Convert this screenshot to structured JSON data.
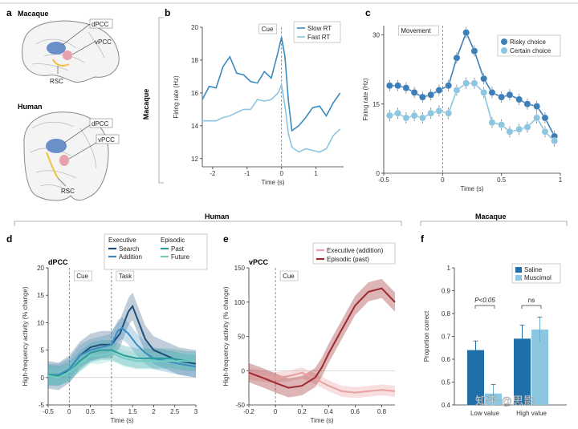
{
  "colors": {
    "dark_blue": "#1f4e79",
    "mid_blue": "#3a8bbf",
    "light_blue": "#8cc6e0",
    "teal": "#2a9d9a",
    "light_teal": "#73cfc4",
    "dark_red": "#9e2a2f",
    "light_red": "#e8a0a3",
    "brain_blue": "#6a8fc9",
    "brain_pink": "#e6a1ad",
    "rsc_yellow": "#f0c040"
  },
  "panel_a": {
    "letter": "a",
    "macaque_title": "Macaque",
    "human_title": "Human",
    "labels": {
      "dpcc": "dPCC",
      "vpcc": "vPCC",
      "rsc": "RSC"
    }
  },
  "panel_b": {
    "letter": "b",
    "side_label": "Macaque",
    "cue": "Cue",
    "legend": [
      "Slow RT",
      "Fast RT"
    ]
  },
  "panel_c": {
    "letter": "c",
    "movement": "Movement",
    "legend": [
      "Risky choice",
      "Certain choice"
    ]
  },
  "human_header": "Human",
  "macaque_header": "Macaque",
  "panel_d": {
    "letter": "d",
    "region": "dPCC",
    "cue": "Cue",
    "task": "Task",
    "legend_exec_title": "Executive",
    "legend_epi_title": "Episodic",
    "legend": [
      "Search",
      "Addition",
      "Past",
      "Future"
    ]
  },
  "panel_e": {
    "letter": "e",
    "region": "vPCC",
    "cue": "Cue",
    "legend": [
      "Executive (addition)",
      "Episodic (past)"
    ]
  },
  "panel_f": {
    "letter": "f",
    "legend": [
      "Saline",
      "Muscimol"
    ],
    "sig1": "P<0.05",
    "sig2": "ns"
  },
  "watermark": "知乎 @思影",
  "chart_data": [
    {
      "type": "line",
      "panel": "b",
      "title": "",
      "xlabel": "Time (s)",
      "ylabel": "Firing rate (Hz)",
      "xlim": [
        -2.3,
        1.8
      ],
      "ylim": [
        11.5,
        20
      ],
      "xticks": [
        -2,
        -1,
        0,
        1
      ],
      "yticks": [
        12,
        14,
        16,
        18,
        20
      ],
      "series": [
        {
          "name": "Slow RT",
          "x": [
            -2.3,
            -2.1,
            -1.9,
            -1.7,
            -1.5,
            -1.3,
            -1.1,
            -0.9,
            -0.7,
            -0.5,
            -0.3,
            -0.1,
            0,
            0.1,
            0.2,
            0.3,
            0.5,
            0.7,
            0.9,
            1.1,
            1.3,
            1.5,
            1.7
          ],
          "y": [
            15.6,
            16.4,
            16.3,
            17.6,
            18.2,
            17.2,
            17.1,
            16.7,
            16.6,
            17.3,
            16.9,
            18.5,
            19.4,
            18.2,
            15.5,
            13.7,
            14.0,
            14.5,
            15.1,
            15.2,
            14.6,
            15.4,
            16.0
          ]
        },
        {
          "name": "Fast RT",
          "x": [
            -2.3,
            -2.1,
            -1.9,
            -1.7,
            -1.5,
            -1.3,
            -1.1,
            -0.9,
            -0.7,
            -0.5,
            -0.3,
            -0.1,
            0,
            0.1,
            0.2,
            0.3,
            0.5,
            0.7,
            0.9,
            1.1,
            1.3,
            1.5,
            1.7
          ],
          "y": [
            14.3,
            14.3,
            14.3,
            14.5,
            14.6,
            14.8,
            15.0,
            15.0,
            15.6,
            15.5,
            15.6,
            16.0,
            16.5,
            15.2,
            13.5,
            12.7,
            12.4,
            12.6,
            12.5,
            12.4,
            12.6,
            13.4,
            13.8
          ]
        }
      ]
    },
    {
      "type": "line",
      "panel": "c",
      "xlabel": "Time (s)",
      "ylabel": "Firing rate (Hz)",
      "xlim": [
        -0.5,
        1.0
      ],
      "ylim": [
        0,
        32
      ],
      "xticks": [
        -0.5,
        0,
        0.5,
        1.0
      ],
      "yticks": [
        0,
        15,
        30
      ],
      "series": [
        {
          "name": "Risky choice",
          "x": [
            -0.45,
            -0.38,
            -0.31,
            -0.24,
            -0.17,
            -0.1,
            -0.03,
            0.05,
            0.12,
            0.2,
            0.27,
            0.35,
            0.42,
            0.5,
            0.57,
            0.65,
            0.72,
            0.8,
            0.87,
            0.95
          ],
          "y": [
            19,
            19,
            18.5,
            17.5,
            16.5,
            17,
            18,
            19,
            25,
            30.5,
            26.5,
            20.5,
            17.5,
            16.5,
            17,
            16,
            15,
            14.5,
            12,
            8
          ]
        },
        {
          "name": "Certain choice",
          "x": [
            -0.45,
            -0.38,
            -0.31,
            -0.24,
            -0.17,
            -0.1,
            -0.03,
            0.05,
            0.12,
            0.2,
            0.27,
            0.35,
            0.42,
            0.5,
            0.57,
            0.65,
            0.72,
            0.8,
            0.87,
            0.95
          ],
          "y": [
            12.5,
            13,
            12,
            12.5,
            12,
            13,
            13.5,
            13,
            18,
            19.5,
            19.5,
            17.5,
            11,
            10.5,
            9,
            9.5,
            10,
            12,
            9,
            7
          ]
        }
      ]
    },
    {
      "type": "line",
      "panel": "d",
      "xlabel": "Time (s)",
      "ylabel": "High-frequency activity (% change)",
      "xlim": [
        -0.5,
        3.0
      ],
      "ylim": [
        -5,
        20
      ],
      "xticks": [
        -0.5,
        0,
        0.5,
        1.0,
        1.5,
        2.0,
        2.5,
        3.0
      ],
      "yticks": [
        -5,
        0,
        5,
        10,
        15,
        20
      ],
      "series": [
        {
          "name": "Search",
          "x": [
            -0.5,
            -0.25,
            0,
            0.25,
            0.5,
            0.75,
            1.0,
            1.2,
            1.4,
            1.5,
            1.6,
            1.8,
            2.0,
            2.3,
            2.6,
            3.0
          ],
          "y": [
            0.5,
            0.2,
            1.5,
            4,
            5.5,
            6,
            6,
            8,
            12,
            13,
            11,
            7,
            5,
            4,
            3,
            2.5
          ]
        },
        {
          "name": "Addition",
          "x": [
            -0.5,
            -0.25,
            0,
            0.25,
            0.5,
            0.75,
            1.0,
            1.15,
            1.25,
            1.4,
            1.6,
            1.8,
            2.0,
            2.3,
            2.6,
            3.0
          ],
          "y": [
            0.5,
            0.5,
            1.5,
            4,
            5,
            5.5,
            6,
            8.5,
            9,
            8,
            6,
            4.5,
            3.5,
            3,
            2.5,
            2
          ]
        },
        {
          "name": "Past",
          "x": [
            -0.5,
            -0.25,
            0,
            0.25,
            0.5,
            0.75,
            1.0,
            1.3,
            1.6,
            2.0,
            2.4,
            2.8,
            3.0
          ],
          "y": [
            0.5,
            0.3,
            1,
            3,
            4.5,
            5,
            5,
            4,
            3.5,
            3.5,
            3.5,
            3,
            3
          ]
        },
        {
          "name": "Future",
          "x": [
            -0.5,
            -0.25,
            0,
            0.25,
            0.5,
            0.75,
            1.0,
            1.3,
            1.6,
            2.0,
            2.4,
            2.8,
            3.0
          ],
          "y": [
            0.3,
            0,
            1,
            2.5,
            4,
            4,
            4.5,
            3.5,
            3,
            3,
            3,
            3,
            3
          ]
        }
      ]
    },
    {
      "type": "line",
      "panel": "e",
      "xlabel": "Time (s)",
      "ylabel": "High-frequency activity (% change)",
      "xlim": [
        -0.2,
        0.9
      ],
      "ylim": [
        -50,
        150
      ],
      "xticks": [
        -0.2,
        0,
        0.2,
        0.4,
        0.6,
        0.8
      ],
      "yticks": [
        -50,
        0,
        50,
        100,
        150
      ],
      "series": [
        {
          "name": "Executive (addition)",
          "x": [
            -0.2,
            -0.1,
            0,
            0.1,
            0.2,
            0.3,
            0.4,
            0.5,
            0.6,
            0.7,
            0.8,
            0.9
          ],
          "y": [
            -5,
            -8,
            -10,
            -8,
            -3,
            -12,
            -22,
            -30,
            -32,
            -30,
            -28,
            -30
          ]
        },
        {
          "name": "Episodic (past)",
          "x": [
            -0.2,
            -0.1,
            0,
            0.1,
            0.2,
            0.3,
            0.35,
            0.4,
            0.5,
            0.6,
            0.7,
            0.8,
            0.9
          ],
          "y": [
            -3,
            -10,
            -18,
            -25,
            -22,
            -10,
            5,
            25,
            60,
            95,
            115,
            120,
            100
          ]
        }
      ]
    },
    {
      "type": "bar",
      "panel": "f",
      "xlabel": "",
      "ylabel": "Proportion correct",
      "ylim": [
        0.4,
        1.0
      ],
      "yticks": [
        0.4,
        0.5,
        0.6,
        0.7,
        0.8,
        0.9,
        1.0
      ],
      "categories": [
        "Low value",
        "High value"
      ],
      "series": [
        {
          "name": "Saline",
          "values": [
            0.64,
            0.69
          ],
          "errors": [
            0.04,
            0.06
          ]
        },
        {
          "name": "Muscimol",
          "values": [
            0.45,
            0.73
          ],
          "errors": [
            0.04,
            0.055
          ]
        }
      ]
    }
  ]
}
